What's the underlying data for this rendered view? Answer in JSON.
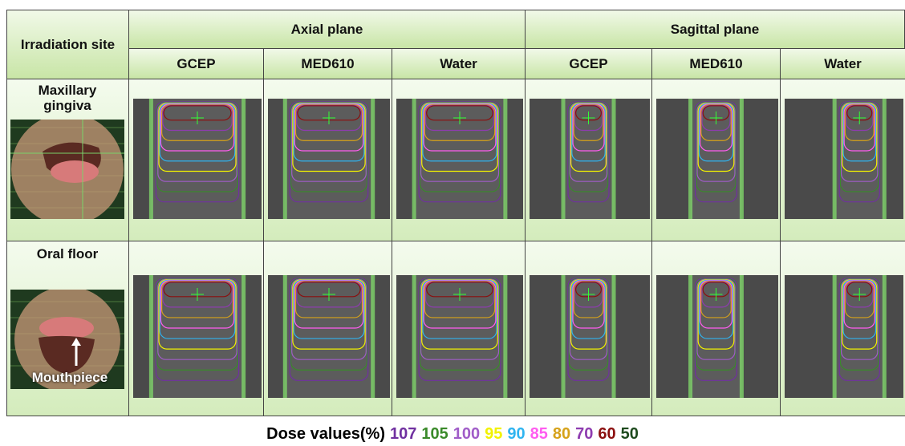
{
  "header": {
    "site": "Irradiation site",
    "planes": [
      "Axial plane",
      "Sagittal plane"
    ],
    "materials": [
      "GCEP",
      "MED610",
      "Water",
      "GCEP",
      "MED610",
      "Water"
    ]
  },
  "rows": [
    {
      "label": "Maxillary gingiva"
    },
    {
      "label": "Oral floor",
      "annotation": "Mouthpiece"
    }
  ],
  "legend": {
    "title": "Dose values(%)",
    "items": [
      {
        "value": 107,
        "color": "#7030a0"
      },
      {
        "value": 105,
        "color": "#3a8a2a"
      },
      {
        "value": 100,
        "color": "#a05cc8"
      },
      {
        "value": 95,
        "color": "#f2f200"
      },
      {
        "value": 90,
        "color": "#2fb4f0"
      },
      {
        "value": 85,
        "color": "#ff5cf0"
      },
      {
        "value": 80,
        "color": "#d6a21a"
      },
      {
        "value": 70,
        "color": "#8e3cb0"
      },
      {
        "value": 60,
        "color": "#8b0f0f"
      },
      {
        "value": 50,
        "color": "#1d4a1d"
      }
    ]
  }
}
